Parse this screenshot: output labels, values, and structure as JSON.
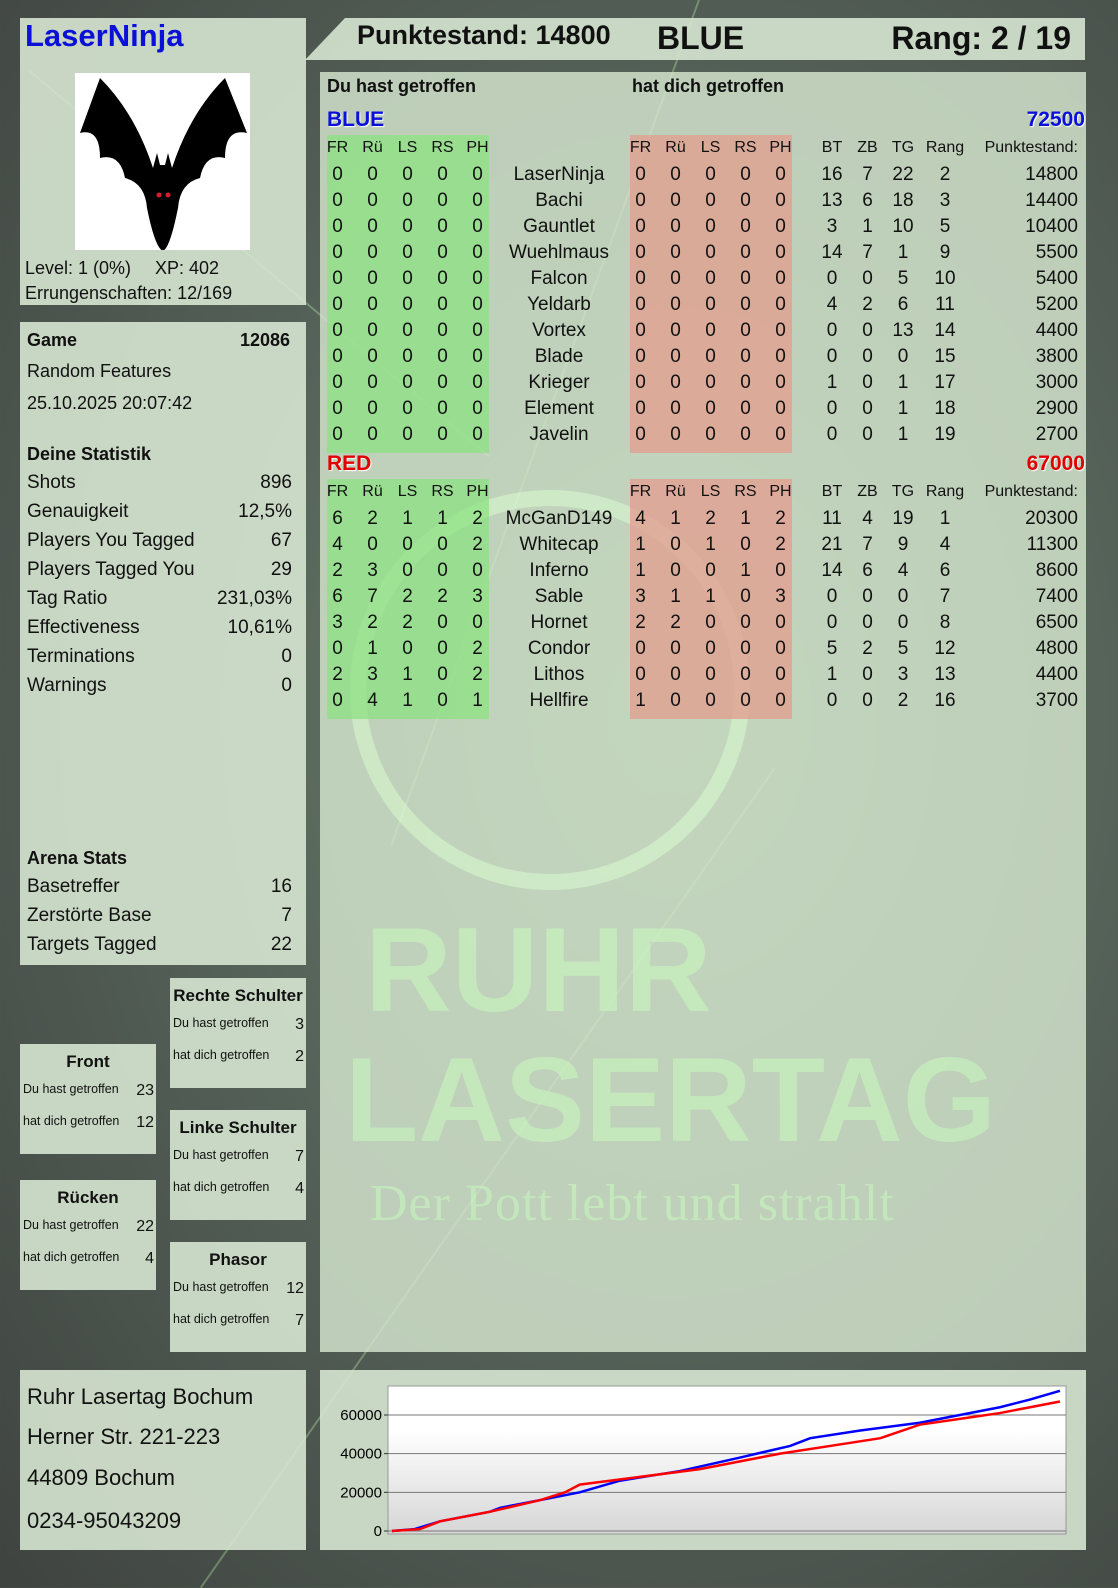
{
  "player": {
    "name": "LaserNinja",
    "level": "Level: 1 (0%)",
    "xp": "XP: 402",
    "achievements": "Errungenschaften: 12/169",
    "avatar": "bat-icon"
  },
  "header": {
    "score": "Punktestand: 14800",
    "team": "BLUE",
    "rank": "Rang: 2 / 19"
  },
  "game": {
    "label": "Game",
    "id": "12086",
    "mode": "Random Features",
    "datetime": "25.10.2025 20:07:42"
  },
  "stats": {
    "title": "Deine Statistik",
    "items": [
      {
        "label": "Shots",
        "value": "896"
      },
      {
        "label": "Genauigkeit",
        "value": "12,5%"
      },
      {
        "label": "Players You Tagged",
        "value": "67"
      },
      {
        "label": "Players Tagged You",
        "value": "29"
      },
      {
        "label": "Tag Ratio",
        "value": "231,03%"
      },
      {
        "label": "Effectiveness",
        "value": "10,61%"
      },
      {
        "label": "Terminations",
        "value": "0"
      },
      {
        "label": "Warnings",
        "value": "0"
      }
    ]
  },
  "arena": {
    "title": "Arena Stats",
    "items": [
      {
        "label": "Basetreffer",
        "value": "16"
      },
      {
        "label": "Zerstörte Base",
        "value": "7"
      },
      {
        "label": "Targets Tagged",
        "value": "22"
      }
    ]
  },
  "zones": [
    {
      "title": "Rechte Schulter",
      "hit_label": "Du hast getroffen",
      "hit": "3",
      "got_label": "hat dich getroffen",
      "got": "2"
    },
    {
      "title": "Front",
      "hit_label": "Du hast getroffen",
      "hit": "23",
      "got_label": "hat dich getroffen",
      "got": "12"
    },
    {
      "title": "Linke Schulter",
      "hit_label": "Du hast getroffen",
      "hit": "7",
      "got_label": "hat dich getroffen",
      "got": "4"
    },
    {
      "title": "Rücken",
      "hit_label": "Du hast getroffen",
      "hit": "22",
      "got_label": "hat dich getroffen",
      "got": "4"
    },
    {
      "title": "Phasor",
      "hit_label": "Du hast getroffen",
      "hit": "12",
      "got_label": "hat dich getroffen",
      "got": "7"
    }
  ],
  "table": {
    "you_hit": "Du hast getroffen",
    "hit_you": "hat dich getroffen",
    "columns": [
      "FR",
      "Rü",
      "LS",
      "RS",
      "PH",
      "",
      "FR",
      "Rü",
      "LS",
      "RS",
      "PH",
      "",
      "BT",
      "ZB",
      "TG",
      "Rang",
      "Punktestand:"
    ],
    "teams": [
      {
        "name": "BLUE",
        "score": "72500",
        "color": "#0a10d8",
        "rows": [
          [
            "0",
            "0",
            "0",
            "0",
            "0",
            "LaserNinja",
            "0",
            "0",
            "0",
            "0",
            "0",
            "",
            "16",
            "7",
            "22",
            "2",
            "14800"
          ],
          [
            "0",
            "0",
            "0",
            "0",
            "0",
            "Bachi",
            "0",
            "0",
            "0",
            "0",
            "0",
            "",
            "13",
            "6",
            "18",
            "3",
            "14400"
          ],
          [
            "0",
            "0",
            "0",
            "0",
            "0",
            "Gauntlet",
            "0",
            "0",
            "0",
            "0",
            "0",
            "",
            "3",
            "1",
            "10",
            "5",
            "10400"
          ],
          [
            "0",
            "0",
            "0",
            "0",
            "0",
            "Wuehlmaus",
            "0",
            "0",
            "0",
            "0",
            "0",
            "",
            "14",
            "7",
            "1",
            "9",
            "5500"
          ],
          [
            "0",
            "0",
            "0",
            "0",
            "0",
            "Falcon",
            "0",
            "0",
            "0",
            "0",
            "0",
            "",
            "0",
            "0",
            "5",
            "10",
            "5400"
          ],
          [
            "0",
            "0",
            "0",
            "0",
            "0",
            "Yeldarb",
            "0",
            "0",
            "0",
            "0",
            "0",
            "",
            "4",
            "2",
            "6",
            "11",
            "5200"
          ],
          [
            "0",
            "0",
            "0",
            "0",
            "0",
            "Vortex",
            "0",
            "0",
            "0",
            "0",
            "0",
            "",
            "0",
            "0",
            "13",
            "14",
            "4400"
          ],
          [
            "0",
            "0",
            "0",
            "0",
            "0",
            "Blade",
            "0",
            "0",
            "0",
            "0",
            "0",
            "",
            "0",
            "0",
            "0",
            "15",
            "3800"
          ],
          [
            "0",
            "0",
            "0",
            "0",
            "0",
            "Krieger",
            "0",
            "0",
            "0",
            "0",
            "0",
            "",
            "1",
            "0",
            "1",
            "17",
            "3000"
          ],
          [
            "0",
            "0",
            "0",
            "0",
            "0",
            "Element",
            "0",
            "0",
            "0",
            "0",
            "0",
            "",
            "0",
            "0",
            "1",
            "18",
            "2900"
          ],
          [
            "0",
            "0",
            "0",
            "0",
            "0",
            "Javelin",
            "0",
            "0",
            "0",
            "0",
            "0",
            "",
            "0",
            "0",
            "1",
            "19",
            "2700"
          ]
        ]
      },
      {
        "name": "RED",
        "score": "67000",
        "color": "#e00000",
        "rows": [
          [
            "6",
            "2",
            "1",
            "1",
            "2",
            "McGanD149",
            "4",
            "1",
            "2",
            "1",
            "2",
            "",
            "11",
            "4",
            "19",
            "1",
            "20300"
          ],
          [
            "4",
            "0",
            "0",
            "0",
            "2",
            "Whitecap",
            "1",
            "0",
            "1",
            "0",
            "2",
            "",
            "21",
            "7",
            "9",
            "4",
            "11300"
          ],
          [
            "2",
            "3",
            "0",
            "0",
            "0",
            "Inferno",
            "1",
            "0",
            "0",
            "1",
            "0",
            "",
            "14",
            "6",
            "4",
            "6",
            "8600"
          ],
          [
            "6",
            "7",
            "2",
            "2",
            "3",
            "Sable",
            "3",
            "1",
            "1",
            "0",
            "3",
            "",
            "0",
            "0",
            "0",
            "7",
            "7400"
          ],
          [
            "3",
            "2",
            "2",
            "0",
            "0",
            "Hornet",
            "2",
            "2",
            "0",
            "0",
            "0",
            "",
            "0",
            "0",
            "0",
            "8",
            "6500"
          ],
          [
            "0",
            "1",
            "0",
            "0",
            "2",
            "Condor",
            "0",
            "0",
            "0",
            "0",
            "0",
            "",
            "5",
            "2",
            "5",
            "12",
            "4800"
          ],
          [
            "2",
            "3",
            "1",
            "0",
            "2",
            "Lithos",
            "0",
            "0",
            "0",
            "0",
            "0",
            "",
            "1",
            "0",
            "3",
            "13",
            "4400"
          ],
          [
            "0",
            "4",
            "1",
            "0",
            "1",
            "Hellfire",
            "1",
            "0",
            "0",
            "0",
            "0",
            "",
            "0",
            "0",
            "2",
            "16",
            "3700"
          ]
        ]
      }
    ]
  },
  "address": [
    "Ruhr Lasertag Bochum",
    "Herner Str. 221-223",
    "44809 Bochum",
    "0234-95043209"
  ],
  "watermark": {
    "line1": "RUHR",
    "line2": "LASERTAG",
    "slogan": "Der Pott lebt und strahlt"
  },
  "chart_data": {
    "type": "line",
    "title": "",
    "xlabel": "",
    "ylabel": "",
    "ylim": [
      0,
      75000
    ],
    "yticks": [
      "0",
      "20000",
      "40000",
      "60000"
    ],
    "grid": true,
    "series": [
      {
        "color": "#0000ff",
        "x": [
          0,
          3.4,
          7.2,
          14.7,
          16.2,
          22.2,
          28.1,
          34.1,
          43.1,
          52.1,
          59.6,
          62.6,
          70.1,
          79,
          85,
          91,
          95.5,
          100
        ],
        "y": [
          0,
          1000,
          5000,
          10000,
          12000,
          16000,
          20000,
          26000,
          31000,
          38000,
          44000,
          48000,
          52000,
          56000,
          60000,
          64000,
          68000,
          72500
        ]
      },
      {
        "color": "#ff0000",
        "x": [
          0,
          4.2,
          7.2,
          14.7,
          22.2,
          25.9,
          28.1,
          37.1,
          46.1,
          55.1,
          58.1,
          65.6,
          73.1,
          79,
          85,
          91,
          100
        ],
        "y": [
          0,
          1000,
          5000,
          10000,
          16000,
          20000,
          24000,
          28000,
          32000,
          38000,
          40000,
          44000,
          48000,
          55000,
          58000,
          61000,
          67000
        ]
      }
    ]
  }
}
